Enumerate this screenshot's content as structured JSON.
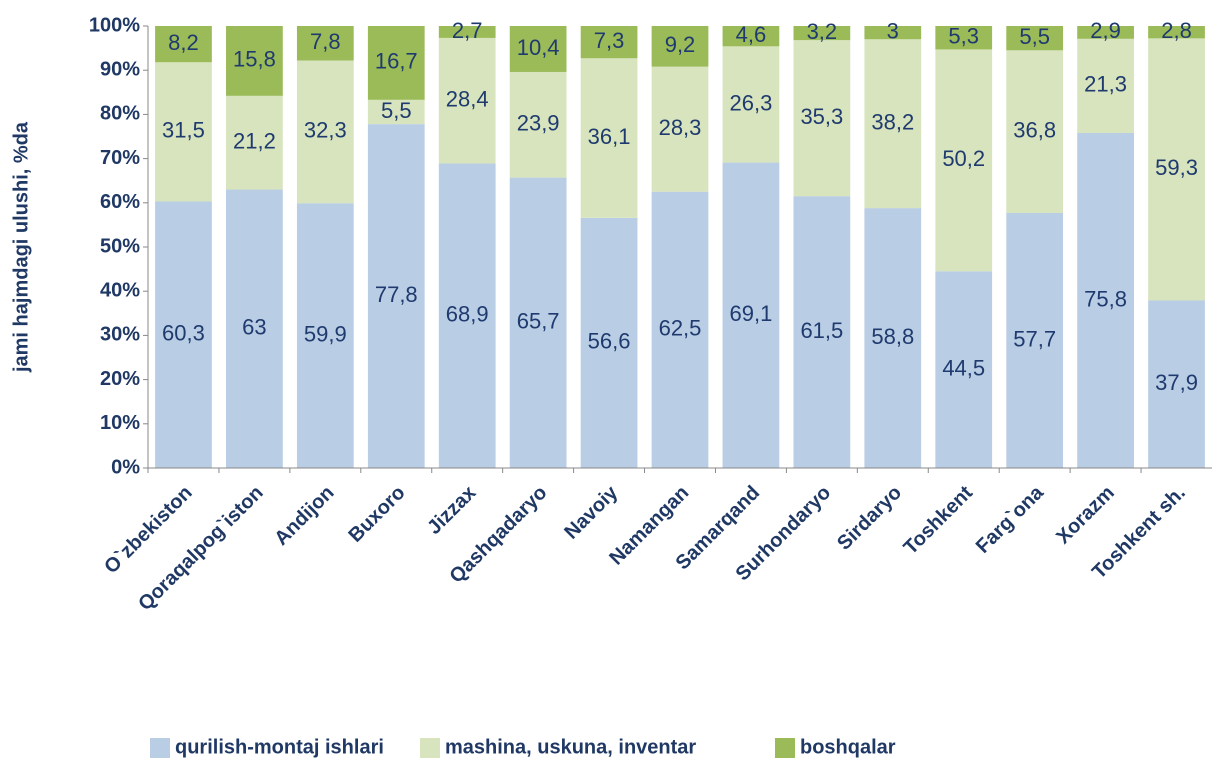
{
  "chart_data": {
    "type": "stacked_bar",
    "y_label": "jami hajmdagi ulushi, %da",
    "categories": [
      "O`zbekiston",
      "Qoraqalpog`iston",
      "Andijon",
      "Buxoro",
      "Jizzax",
      "Qashqadaryo",
      "Navoiy",
      "Namangan",
      "Samarqand",
      "Surhondaryo",
      "Sirdaryo",
      "Toshkent",
      "Farg`ona",
      "Xorazm",
      "Toshkent sh."
    ],
    "series": [
      {
        "name": "qurilish-montaj ishlari",
        "color": "#b9cde5",
        "values": [
          60.3,
          63,
          59.9,
          77.8,
          68.9,
          65.7,
          56.6,
          62.5,
          69.1,
          61.5,
          58.8,
          44.5,
          57.7,
          75.8,
          37.9
        ],
        "value_labels": [
          "60,3",
          "63",
          "59,9",
          "77,8",
          "68,9",
          "65,7",
          "56,6",
          "62,5",
          "69,1",
          "61,5",
          "58,8",
          "44,5",
          "57,7",
          "75,8",
          "37,9"
        ]
      },
      {
        "name": "mashina, uskuna,  inventar",
        "color": "#d7e4bd",
        "values": [
          31.5,
          21.2,
          32.3,
          5.5,
          28.4,
          23.9,
          36.1,
          28.3,
          26.3,
          35.3,
          38.2,
          50.2,
          36.8,
          21.3,
          59.3
        ],
        "value_labels": [
          "31,5",
          "21,2",
          "32,3",
          "5,5",
          "28,4",
          "23,9",
          "36,1",
          "28,3",
          "26,3",
          "35,3",
          "38,2",
          "50,2",
          "36,8",
          "21,3",
          "59,3"
        ]
      },
      {
        "name": "boshqalar",
        "color": "#9bbb59",
        "values": [
          8.2,
          15.8,
          7.8,
          16.7,
          2.7,
          10.4,
          7.3,
          9.2,
          4.6,
          3.2,
          3,
          5.3,
          5.5,
          2.9,
          2.8
        ],
        "value_labels": [
          "8,2",
          "15,8",
          "7,8",
          "16,7",
          "2,7",
          "10,4",
          "7,3",
          "9,2",
          "4,6",
          "3,2",
          "3",
          "5,3",
          "5,5",
          "2,9",
          "2,8"
        ]
      }
    ],
    "ylim": [
      0,
      100
    ],
    "yticks": [
      {
        "value": 0,
        "label": "0%"
      },
      {
        "value": 10,
        "label": "10%"
      },
      {
        "value": 20,
        "label": "20%"
      },
      {
        "value": 30,
        "label": "30%"
      },
      {
        "value": 40,
        "label": "40%"
      },
      {
        "value": 50,
        "label": "50%"
      },
      {
        "value": 60,
        "label": "60%"
      },
      {
        "value": 70,
        "label": "70%"
      },
      {
        "value": 80,
        "label": "80%"
      },
      {
        "value": 90,
        "label": "90%"
      },
      {
        "value": 100,
        "label": "100%"
      }
    ],
    "grid": false,
    "legend": "bottom"
  }
}
